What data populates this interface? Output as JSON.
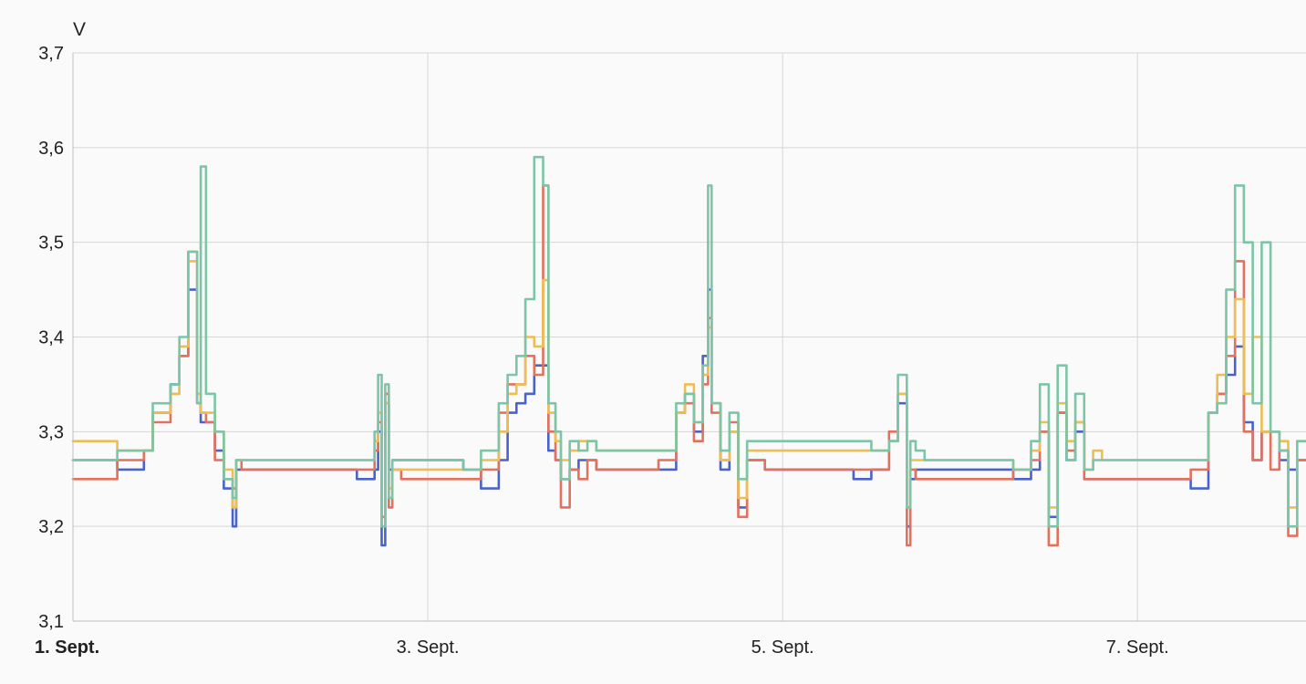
{
  "chart_data": {
    "type": "line",
    "ylabel": "V",
    "ylim": [
      3.1,
      3.7
    ],
    "y_ticks": [
      "3,1",
      "3,2",
      "3,3",
      "3,4",
      "3,5",
      "3,6",
      "3,7"
    ],
    "y_tick_values": [
      3.1,
      3.2,
      3.3,
      3.4,
      3.5,
      3.6,
      3.7
    ],
    "xlim_days": [
      1,
      7.95
    ],
    "x_ticks": [
      {
        "label": "1. Sept.",
        "day": 1,
        "bold": true
      },
      {
        "label": "3. Sept.",
        "day": 3,
        "bold": false
      },
      {
        "label": "5. Sept.",
        "day": 5,
        "bold": false
      },
      {
        "label": "7. Sept.",
        "day": 7,
        "bold": false
      }
    ],
    "grid": true,
    "series": [
      {
        "color": "#4a63c8",
        "x": [
          1.0,
          1.2,
          1.25,
          1.4,
          1.45,
          1.55,
          1.6,
          1.65,
          1.7,
          1.72,
          1.75,
          1.8,
          1.85,
          1.9,
          1.92,
          1.95,
          2.0,
          2.5,
          2.6,
          2.7,
          2.72,
          2.74,
          2.76,
          2.78,
          2.8,
          2.85,
          3.0,
          3.2,
          3.3,
          3.4,
          3.45,
          3.5,
          3.55,
          3.6,
          3.65,
          3.68,
          3.72,
          3.75,
          3.8,
          3.85,
          3.9,
          3.95,
          4.0,
          4.3,
          4.4,
          4.45,
          4.5,
          4.55,
          4.58,
          4.6,
          4.65,
          4.7,
          4.75,
          4.8,
          4.85,
          4.9,
          5.0,
          5.3,
          5.4,
          5.5,
          5.6,
          5.65,
          5.7,
          5.72,
          5.75,
          5.8,
          5.9,
          6.0,
          6.3,
          6.4,
          6.45,
          6.5,
          6.55,
          6.6,
          6.65,
          6.7,
          6.75,
          6.8,
          6.9,
          7.0,
          7.3,
          7.4,
          7.45,
          7.5,
          7.55,
          7.6,
          7.65,
          7.7,
          7.75,
          7.8,
          7.85,
          7.9,
          7.95
        ],
        "y": [
          3.27,
          3.27,
          3.26,
          3.28,
          3.32,
          3.35,
          3.38,
          3.45,
          3.33,
          3.31,
          3.31,
          3.28,
          3.24,
          3.2,
          3.26,
          3.26,
          3.26,
          3.26,
          3.25,
          3.26,
          3.3,
          3.18,
          3.33,
          3.26,
          3.27,
          3.27,
          3.27,
          3.26,
          3.24,
          3.27,
          3.32,
          3.33,
          3.34,
          3.37,
          3.37,
          3.28,
          3.27,
          3.25,
          3.26,
          3.27,
          3.27,
          3.26,
          3.26,
          3.26,
          3.32,
          3.34,
          3.3,
          3.38,
          3.45,
          3.33,
          3.26,
          3.3,
          3.22,
          3.27,
          3.27,
          3.26,
          3.26,
          3.26,
          3.25,
          3.26,
          3.29,
          3.33,
          3.2,
          3.25,
          3.26,
          3.26,
          3.26,
          3.26,
          3.25,
          3.26,
          3.3,
          3.21,
          3.32,
          3.27,
          3.3,
          3.25,
          3.25,
          3.25,
          3.25,
          3.25,
          3.24,
          3.32,
          3.34,
          3.36,
          3.39,
          3.31,
          3.27,
          3.3,
          3.3,
          3.27,
          3.26,
          3.27,
          3.27
        ]
      },
      {
        "color": "#e0725e",
        "x": [
          1.0,
          1.2,
          1.25,
          1.4,
          1.45,
          1.55,
          1.6,
          1.65,
          1.7,
          1.72,
          1.75,
          1.8,
          1.85,
          1.9,
          1.92,
          1.95,
          2.0,
          2.5,
          2.6,
          2.7,
          2.72,
          2.74,
          2.76,
          2.78,
          2.8,
          2.85,
          3.0,
          3.2,
          3.3,
          3.4,
          3.45,
          3.5,
          3.55,
          3.6,
          3.65,
          3.68,
          3.72,
          3.75,
          3.8,
          3.85,
          3.9,
          3.95,
          4.0,
          4.3,
          4.4,
          4.45,
          4.5,
          4.55,
          4.58,
          4.6,
          4.65,
          4.7,
          4.75,
          4.8,
          4.85,
          4.9,
          5.0,
          5.3,
          5.4,
          5.5,
          5.6,
          5.65,
          5.7,
          5.72,
          5.75,
          5.8,
          5.9,
          6.0,
          6.3,
          6.4,
          6.45,
          6.5,
          6.55,
          6.6,
          6.65,
          6.7,
          6.75,
          6.8,
          6.9,
          7.0,
          7.3,
          7.4,
          7.45,
          7.5,
          7.55,
          7.6,
          7.65,
          7.7,
          7.75,
          7.8,
          7.85,
          7.9,
          7.95
        ],
        "y": [
          3.25,
          3.25,
          3.27,
          3.28,
          3.31,
          3.34,
          3.38,
          3.49,
          3.33,
          3.32,
          3.31,
          3.27,
          3.25,
          3.24,
          3.27,
          3.26,
          3.26,
          3.26,
          3.26,
          3.28,
          3.31,
          3.21,
          3.34,
          3.22,
          3.26,
          3.25,
          3.25,
          3.25,
          3.26,
          3.32,
          3.35,
          3.35,
          3.38,
          3.36,
          3.56,
          3.3,
          3.27,
          3.22,
          3.26,
          3.25,
          3.27,
          3.26,
          3.26,
          3.27,
          3.32,
          3.33,
          3.29,
          3.35,
          3.42,
          3.32,
          3.27,
          3.31,
          3.21,
          3.27,
          3.27,
          3.26,
          3.26,
          3.26,
          3.26,
          3.26,
          3.3,
          3.34,
          3.18,
          3.26,
          3.25,
          3.25,
          3.25,
          3.25,
          3.26,
          3.27,
          3.3,
          3.18,
          3.32,
          3.28,
          3.31,
          3.25,
          3.25,
          3.25,
          3.25,
          3.25,
          3.26,
          3.32,
          3.34,
          3.38,
          3.48,
          3.3,
          3.27,
          3.3,
          3.26,
          3.28,
          3.19,
          3.27,
          3.27
        ]
      },
      {
        "color": "#ecbe55",
        "x": [
          1.0,
          1.2,
          1.25,
          1.4,
          1.45,
          1.55,
          1.6,
          1.65,
          1.7,
          1.72,
          1.75,
          1.8,
          1.85,
          1.9,
          1.92,
          1.95,
          2.0,
          2.5,
          2.6,
          2.7,
          2.72,
          2.74,
          2.76,
          2.78,
          2.8,
          2.85,
          3.0,
          3.2,
          3.3,
          3.4,
          3.45,
          3.5,
          3.55,
          3.6,
          3.65,
          3.68,
          3.72,
          3.75,
          3.8,
          3.85,
          3.9,
          3.95,
          4.0,
          4.3,
          4.4,
          4.45,
          4.5,
          4.55,
          4.58,
          4.6,
          4.65,
          4.7,
          4.75,
          4.8,
          4.85,
          4.9,
          5.0,
          5.3,
          5.4,
          5.5,
          5.6,
          5.65,
          5.7,
          5.72,
          5.75,
          5.8,
          5.9,
          6.0,
          6.3,
          6.4,
          6.45,
          6.5,
          6.55,
          6.6,
          6.65,
          6.7,
          6.75,
          6.8,
          6.9,
          7.0,
          7.3,
          7.4,
          7.45,
          7.5,
          7.55,
          7.6,
          7.65,
          7.7,
          7.75,
          7.8,
          7.85,
          7.9,
          7.95
        ],
        "y": [
          3.29,
          3.29,
          3.28,
          3.28,
          3.32,
          3.34,
          3.39,
          3.48,
          3.34,
          3.32,
          3.32,
          3.3,
          3.26,
          3.22,
          3.27,
          3.27,
          3.27,
          3.27,
          3.27,
          3.29,
          3.32,
          3.2,
          3.33,
          3.24,
          3.26,
          3.26,
          3.26,
          3.26,
          3.27,
          3.3,
          3.34,
          3.35,
          3.4,
          3.39,
          3.46,
          3.32,
          3.29,
          3.27,
          3.28,
          3.29,
          3.29,
          3.28,
          3.28,
          3.28,
          3.32,
          3.35,
          3.31,
          3.36,
          3.41,
          3.33,
          3.27,
          3.3,
          3.23,
          3.28,
          3.28,
          3.28,
          3.28,
          3.28,
          3.28,
          3.28,
          3.29,
          3.34,
          3.22,
          3.27,
          3.27,
          3.27,
          3.27,
          3.27,
          3.26,
          3.28,
          3.31,
          3.22,
          3.33,
          3.29,
          3.31,
          3.26,
          3.28,
          3.27,
          3.27,
          3.27,
          3.27,
          3.32,
          3.36,
          3.4,
          3.44,
          3.34,
          3.4,
          3.3,
          3.3,
          3.29,
          3.22,
          3.29,
          3.29
        ]
      },
      {
        "color": "#7cc5a6",
        "x": [
          1.0,
          1.2,
          1.25,
          1.4,
          1.45,
          1.55,
          1.6,
          1.65,
          1.7,
          1.72,
          1.75,
          1.8,
          1.85,
          1.9,
          1.92,
          1.95,
          2.0,
          2.5,
          2.6,
          2.7,
          2.72,
          2.74,
          2.76,
          2.78,
          2.8,
          2.85,
          3.0,
          3.2,
          3.3,
          3.4,
          3.45,
          3.5,
          3.55,
          3.6,
          3.65,
          3.68,
          3.72,
          3.75,
          3.8,
          3.85,
          3.9,
          3.95,
          4.0,
          4.3,
          4.4,
          4.45,
          4.5,
          4.55,
          4.58,
          4.6,
          4.65,
          4.7,
          4.75,
          4.8,
          4.85,
          4.9,
          5.0,
          5.3,
          5.4,
          5.5,
          5.6,
          5.65,
          5.7,
          5.72,
          5.75,
          5.8,
          5.9,
          6.0,
          6.3,
          6.4,
          6.45,
          6.5,
          6.55,
          6.6,
          6.65,
          6.7,
          6.75,
          6.8,
          6.9,
          7.0,
          7.3,
          7.4,
          7.45,
          7.5,
          7.55,
          7.6,
          7.65,
          7.7,
          7.75,
          7.8,
          7.85,
          7.9,
          7.95
        ],
        "y": [
          3.27,
          3.27,
          3.28,
          3.28,
          3.33,
          3.35,
          3.4,
          3.49,
          3.33,
          3.58,
          3.34,
          3.3,
          3.25,
          3.23,
          3.27,
          3.27,
          3.27,
          3.27,
          3.27,
          3.3,
          3.36,
          3.2,
          3.35,
          3.23,
          3.27,
          3.27,
          3.27,
          3.26,
          3.28,
          3.33,
          3.36,
          3.38,
          3.44,
          3.59,
          3.56,
          3.33,
          3.3,
          3.25,
          3.29,
          3.28,
          3.29,
          3.28,
          3.28,
          3.28,
          3.33,
          3.34,
          3.31,
          3.37,
          3.56,
          3.33,
          3.28,
          3.32,
          3.25,
          3.29,
          3.29,
          3.29,
          3.29,
          3.29,
          3.29,
          3.28,
          3.29,
          3.36,
          3.22,
          3.29,
          3.28,
          3.27,
          3.27,
          3.27,
          3.26,
          3.29,
          3.35,
          3.2,
          3.37,
          3.27,
          3.34,
          3.26,
          3.27,
          3.27,
          3.27,
          3.27,
          3.27,
          3.32,
          3.33,
          3.45,
          3.56,
          3.5,
          3.33,
          3.5,
          3.3,
          3.28,
          3.2,
          3.29,
          3.29
        ]
      }
    ]
  }
}
